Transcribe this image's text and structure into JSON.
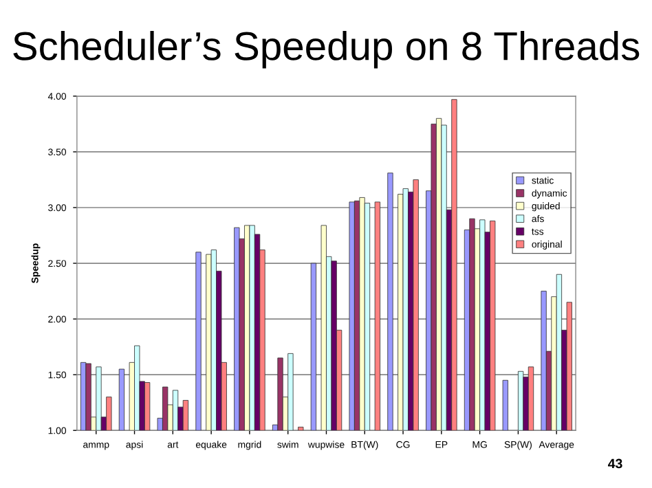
{
  "chart_data": {
    "type": "bar",
    "title": "Scheduler’s Speedup on 8 Threads",
    "ylabel": "Speedup",
    "categories": [
      "ammp",
      "apsi",
      "art",
      "equake",
      "mgrid",
      "swim",
      "wupwise",
      "BT(W)",
      "CG",
      "EP",
      "MG",
      "SP(W)",
      "Average"
    ],
    "series": [
      {
        "name": "static",
        "color": "#9999ff",
        "values": [
          1.61,
          1.55,
          1.11,
          2.6,
          2.82,
          1.05,
          2.5,
          3.05,
          3.31,
          3.15,
          2.8,
          1.45,
          2.25
        ]
      },
      {
        "name": "dynamic",
        "color": "#993366",
        "values": [
          1.6,
          null,
          1.39,
          null,
          2.72,
          1.65,
          null,
          3.06,
          null,
          3.75,
          2.9,
          null,
          1.71
        ]
      },
      {
        "name": "guided",
        "color": "#ffffcc",
        "values": [
          1.12,
          1.61,
          1.23,
          2.58,
          2.84,
          1.3,
          2.84,
          3.09,
          3.12,
          3.8,
          2.81,
          null,
          2.2
        ]
      },
      {
        "name": "afs",
        "color": "#ccffff",
        "values": [
          1.57,
          1.76,
          1.36,
          2.62,
          2.84,
          1.69,
          2.56,
          3.04,
          3.17,
          3.74,
          2.89,
          1.53,
          2.4
        ]
      },
      {
        "name": "tss",
        "color": "#660066",
        "values": [
          1.12,
          1.44,
          1.21,
          2.43,
          2.76,
          null,
          2.52,
          null,
          3.14,
          2.98,
          2.78,
          1.48,
          1.9
        ]
      },
      {
        "name": "original",
        "color": "#ff8080",
        "values": [
          1.3,
          1.43,
          1.27,
          1.61,
          2.62,
          1.03,
          1.9,
          3.05,
          3.25,
          3.97,
          2.88,
          1.57,
          2.15
        ]
      }
    ],
    "ylim": [
      1,
      4
    ],
    "yticks": [
      {
        "value": 1,
        "label": "1.00"
      },
      {
        "value": 1.5,
        "label": "1.50"
      },
      {
        "value": 2,
        "label": "2.00"
      },
      {
        "value": 2.5,
        "label": "2.50"
      },
      {
        "value": 3,
        "label": "3.00"
      },
      {
        "value": 3.5,
        "label": "3.50"
      },
      {
        "value": 4,
        "label": "4.00"
      }
    ],
    "grid": "y",
    "legend": "right",
    "annotations": [
      "43"
    ]
  }
}
